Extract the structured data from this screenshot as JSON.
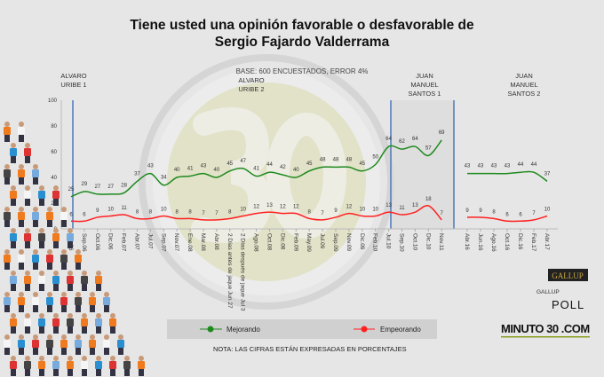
{
  "title_line1": "Tiene usted una opinión favorable o desfavorable de",
  "title_line2": "Sergio Fajardo Valderrama",
  "base": "BASE: 600 ENCUESTADOS, ERROR 4%",
  "note": "NOTA: LAS CIFRAS ESTÁN EXPRESADAS EN PORCENTAJES",
  "periods": [
    {
      "line1": "ALVARO",
      "line2": "URIBE 1",
      "line3": ""
    },
    {
      "line1": "ALVARO",
      "line2": "URIBE 2",
      "line3": ""
    },
    {
      "line1": "JUAN",
      "line2": "MANUEL",
      "line3": "SANTOS 1"
    },
    {
      "line1": "JUAN",
      "line2": "MANUEL",
      "line3": "SANTOS 2"
    }
  ],
  "logos": {
    "gallup": "GALLUP",
    "gallup_poll_1": "GALLUP",
    "gallup_poll_2": "POLL",
    "minuto30": "MINUTO 30 .COM",
    "watermark": "30"
  },
  "colors": {
    "mejorando": "#1e8a1e",
    "empeorando": "#ff2020",
    "period_line": "#4a78b8",
    "background": "#e6e6e6"
  },
  "chart_data": {
    "type": "line",
    "ylim": [
      0,
      100
    ],
    "yticks": [
      0,
      20,
      40,
      60,
      80,
      100
    ],
    "grid": false,
    "legend": "bottom",
    "segments": [
      {
        "categories": [
          "Jun.06",
          "Sep.06",
          "Oct.06",
          "Dic.06",
          "Feb.07",
          "Abr.07",
          "Jul.07",
          "Sep.07",
          "Nov.07",
          "Ene.08",
          "Mar.08",
          "Abr.08",
          "2 Días antes de jaque Jun 27",
          "2 Días después de jaque Jul 3",
          "Ago.08",
          "Oct.08",
          "Dic.08",
          "Feb.09",
          "May.09",
          "Jul.09",
          "Sep.09",
          "Nov.09",
          "Dic.09",
          "Feb.10",
          "Jul.10",
          "Sep.10",
          "Oct.10",
          "Dic.10",
          "Nov.11"
        ],
        "series": [
          {
            "name": "Mejorando",
            "values": [
              25,
              29,
              27,
              27,
              28,
              37,
              43,
              34,
              40,
              41,
              43,
              40,
              45,
              47,
              41,
              44,
              42,
              40,
              45,
              48,
              48,
              48,
              45,
              50,
              64,
              62,
              64,
              57,
              69
            ]
          },
          {
            "name": "Empeorando",
            "values": [
              6,
              6,
              9,
              10,
              11,
              8,
              8,
              10,
              8,
              8,
              7,
              7,
              8,
              10,
              12,
              13,
              12,
              12,
              8,
              7,
              9,
              12,
              10,
              10,
              13,
              11,
              13,
              18,
              7
            ]
          }
        ]
      },
      {
        "categories": [
          "Abr.16",
          "Jun.16",
          "Ago.16",
          "Oct.16",
          "Dic.16",
          "Feb.17",
          "Abr.17"
        ],
        "series": [
          {
            "name": "Mejorando",
            "values": [
              43,
              43,
              43,
              43,
              44,
              44,
              37
            ]
          },
          {
            "name": "Empeorando",
            "values": [
              9,
              9,
              8,
              6,
              6,
              7,
              10
            ]
          }
        ]
      }
    ]
  }
}
